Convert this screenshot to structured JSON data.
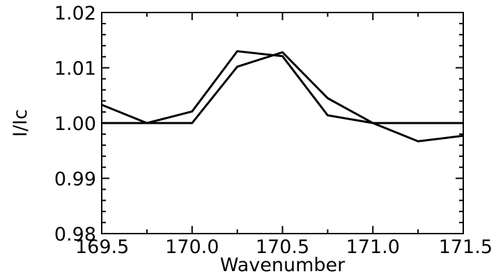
{
  "chart_data": {
    "type": "line",
    "title": "",
    "xlabel": "Wavenumber",
    "ylabel": "I/Ic",
    "xlim": [
      169.5,
      171.5
    ],
    "ylim": [
      0.98,
      1.02
    ],
    "x_ticks": [
      169.5,
      170.0,
      170.5,
      171.0,
      171.5
    ],
    "x_tick_labels": [
      "169.5",
      "170.0",
      "170.5",
      "171.0",
      "171.5"
    ],
    "x_minor_ticks": [
      169.75,
      170.25,
      170.75,
      171.25
    ],
    "y_ticks": [
      0.98,
      0.99,
      1.0,
      1.01,
      1.02
    ],
    "y_tick_labels": [
      "0.98",
      "0.99",
      "1.00",
      "1.01",
      "1.02"
    ],
    "y_minor_step": 0.002,
    "grid": false,
    "line_color": "#000000",
    "series": [
      {
        "x": [
          169.5,
          169.75,
          170.0,
          170.25,
          170.5,
          170.75,
          171.0,
          171.25,
          171.5
        ],
        "y": [
          1.0,
          1.0,
          1.0,
          1.0102,
          1.0128,
          1.0045,
          1.0,
          1.0,
          1.0
        ]
      },
      {
        "x": [
          169.5,
          169.75,
          170.0,
          170.25,
          170.5,
          170.75,
          171.0,
          171.25,
          171.5
        ],
        "y": [
          1.0033,
          1.0,
          1.0021,
          1.013,
          1.0121,
          1.0014,
          1.0,
          0.9967,
          0.9977
        ]
      }
    ]
  }
}
